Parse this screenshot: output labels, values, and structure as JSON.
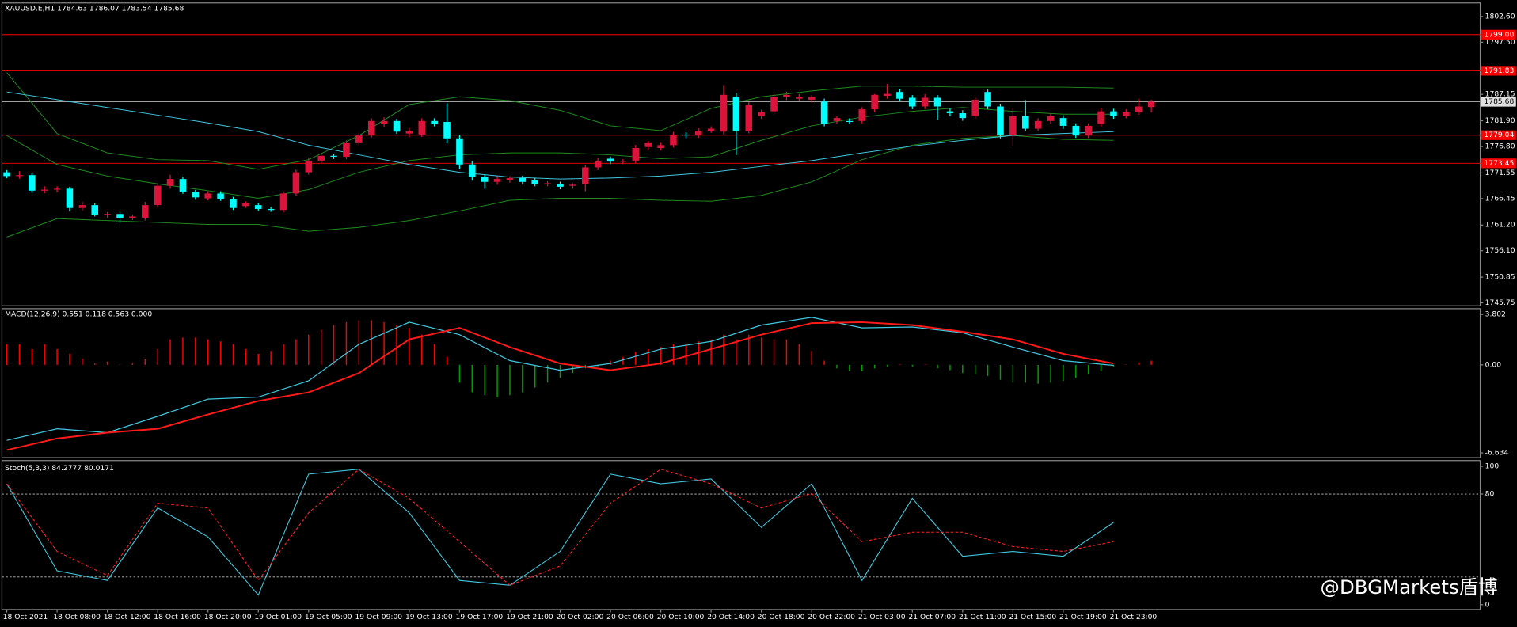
{
  "watermark": "@DBGMarkets盾博",
  "chart_data": [
    {
      "type": "candlestick",
      "title": "XAUUSD.E,H1  1784.63 1786.07 1783.54 1785.68",
      "categories": [
        "18 Oct 2021",
        null,
        null,
        null,
        "18 Oct 08:00",
        null,
        null,
        null,
        "18 Oct 12:00",
        null,
        null,
        null,
        "18 Oct 16:00",
        null,
        null,
        null,
        "18 Oct 20:00",
        null,
        null,
        null,
        "19 Oct 01:00",
        null,
        null,
        null,
        "19 Oct 05:00",
        null,
        null,
        null,
        "19 Oct 09:00",
        null,
        null,
        null,
        "19 Oct 13:00",
        null,
        null,
        null,
        "19 Oct 17:00",
        null,
        null,
        null,
        "19 Oct 21:00",
        null,
        null,
        null,
        "20 Oct 02:00",
        null,
        null,
        null,
        "20 Oct 06:00",
        null,
        null,
        null,
        "20 Oct 10:00",
        null,
        null,
        null,
        "20 Oct 14:00",
        null,
        null,
        null,
        "20 Oct 18:00",
        null,
        null,
        null,
        "20 Oct 22:00",
        null,
        null,
        null,
        "21 Oct 03:00",
        null,
        null,
        null,
        "21 Oct 07:00",
        null,
        null,
        null,
        "21 Oct 11:00",
        null,
        null,
        null,
        "21 Oct 15:00",
        null,
        null,
        null,
        "21 Oct 19:00",
        null,
        null,
        null,
        "21 Oct 23:00",
        null,
        null,
        null
      ],
      "open": [
        1771.68,
        1770.92,
        1771.11,
        1768.03,
        1768.23,
        1768.42,
        1764.58,
        1765.15,
        1763.23,
        1763.4,
        1762.66,
        1762.66,
        1765.15,
        1768.99,
        1770.34,
        1767.84,
        1766.5,
        1767.46,
        1766.31,
        1764.96,
        1765.15,
        1764.39,
        1764.19,
        1767.46,
        1771.68,
        1773.99,
        1774.95,
        1774.76,
        1777.45,
        1778.98,
        1781.29,
        1781.86,
        1779.37,
        1779.17,
        1781.86,
        1781.67,
        1778.41,
        1773.22,
        1770.72,
        1769.76,
        1770.15,
        1770.53,
        1770.15,
        1769.38,
        1769.38,
        1768.99,
        1769.38,
        1772.64,
        1774.37,
        1773.8,
        1773.99,
        1776.68,
        1776.49,
        1777.06,
        1779.17,
        1778.98,
        1779.94,
        1779.75,
        1786.66,
        1779.94,
        1782.82,
        1783.78,
        1786.66,
        1786.28,
        1786.09,
        1785.7,
        1781.86,
        1781.86,
        1781.86,
        1784.17,
        1786.86,
        1787.62,
        1786.47,
        1784.74,
        1786.47,
        1783.78,
        1783.4,
        1782.82,
        1787.62,
        1784.74,
        1778.98,
        1782.82,
        1780.33,
        1781.86,
        1782.44,
        1780.9,
        1778.98,
        1781.29,
        1783.78,
        1782.82,
        1783.59,
        1784.63
      ],
      "high": [
        1772.1,
        1771.9,
        1771.5,
        1768.9,
        1768.9,
        1768.8,
        1765.8,
        1765.5,
        1763.8,
        1763.9,
        1763.3,
        1765.8,
        1769.5,
        1771.2,
        1770.8,
        1768.2,
        1767.9,
        1767.9,
        1766.8,
        1765.9,
        1765.6,
        1764.8,
        1767.9,
        1772.2,
        1774.6,
        1775.4,
        1775.3,
        1778,
        1779.5,
        1782.4,
        1782.6,
        1782.3,
        1780.5,
        1782.4,
        1782.4,
        1785.4,
        1779,
        1773.9,
        1771.3,
        1770.9,
        1770.9,
        1771,
        1770.6,
        1769.9,
        1769.8,
        1769.5,
        1773.2,
        1774.5,
        1774.8,
        1774.3,
        1777.1,
        1777.9,
        1777.5,
        1779.7,
        1779.6,
        1780.4,
        1780.8,
        1789,
        1787.4,
        1785.6,
        1784.1,
        1787.2,
        1787.7,
        1787.2,
        1787,
        1786.3,
        1782.9,
        1782.4,
        1784.6,
        1787.2,
        1789.2,
        1788.2,
        1787,
        1787.2,
        1787,
        1784.4,
        1784,
        1786.6,
        1788.1,
        1785.3,
        1784.4,
        1786,
        1782.4,
        1783.4,
        1783,
        1781.4,
        1781.4,
        1784.4,
        1784.3,
        1784.2,
        1786.3,
        1786.07
      ],
      "low": [
        1770.5,
        1770.4,
        1767.6,
        1767.5,
        1767.7,
        1763.9,
        1764.1,
        1762.9,
        1762.6,
        1761.6,
        1762.2,
        1762.1,
        1764.6,
        1768.4,
        1767.4,
        1766.2,
        1766.1,
        1766,
        1764.2,
        1764.6,
        1764,
        1763.8,
        1763.7,
        1767,
        1771.2,
        1773.5,
        1774.3,
        1774.3,
        1777,
        1778.6,
        1780.7,
        1779.3,
        1778.6,
        1778.7,
        1780.8,
        1777.4,
        1772.4,
        1770,
        1768.4,
        1769.2,
        1769.6,
        1769.3,
        1768.9,
        1768.9,
        1768.3,
        1768.4,
        1767.9,
        1772.1,
        1773.3,
        1773.3,
        1773.5,
        1776.2,
        1776,
        1776.6,
        1778.5,
        1778.5,
        1779.5,
        1779.2,
        1775.1,
        1779.4,
        1782.3,
        1783.2,
        1786,
        1785.8,
        1785.5,
        1780.8,
        1781.3,
        1781.2,
        1781.4,
        1783.7,
        1786.3,
        1785.8,
        1784.2,
        1784.2,
        1782.1,
        1782.8,
        1781.9,
        1782.3,
        1784.2,
        1778.4,
        1776.8,
        1779.8,
        1779.9,
        1781.3,
        1780.3,
        1778.5,
        1778.5,
        1780.8,
        1782.3,
        1782.4,
        1783.1,
        1783.54
      ],
      "close": [
        1770.92,
        1771.11,
        1768.03,
        1768.23,
        1768.42,
        1764.58,
        1765.15,
        1763.23,
        1763.4,
        1762.66,
        1762.9,
        1765.15,
        1768.99,
        1770.34,
        1767.84,
        1766.69,
        1767.46,
        1766.31,
        1764.58,
        1765.54,
        1764.39,
        1764.19,
        1767.46,
        1771.68,
        1773.99,
        1774.95,
        1774.76,
        1777.45,
        1778.98,
        1781.86,
        1781.86,
        1779.75,
        1779.94,
        1781.86,
        1781.29,
        1778.41,
        1773.22,
        1770.72,
        1769.76,
        1770.34,
        1770.53,
        1769.76,
        1769.38,
        1769.5,
        1768.8,
        1769.2,
        1772.64,
        1773.99,
        1773.8,
        1773.95,
        1776.49,
        1777.45,
        1777.06,
        1779.17,
        1778.98,
        1779.94,
        1780.33,
        1787.05,
        1779.94,
        1785.13,
        1783.59,
        1786.66,
        1787.05,
        1786.66,
        1786.66,
        1781.29,
        1782.44,
        1781.67,
        1784.17,
        1787.05,
        1787.24,
        1786.28,
        1784.74,
        1786.47,
        1784.74,
        1783.4,
        1782.44,
        1786.09,
        1784.74,
        1778.98,
        1782.82,
        1780.33,
        1781.86,
        1782.82,
        1780.9,
        1778.98,
        1780.9,
        1783.78,
        1782.82,
        1783.59,
        1784.74,
        1785.68
      ],
      "up_color": "#dc143c",
      "down_color": "#00ffff",
      "overlays": [
        {
          "color": "#1e8c1e",
          "values": [
            1791.47,
            1779.37,
            1775.52,
            1774.18,
            1773.99,
            1772.26,
            1774.18,
            1778.98,
            1785.13,
            1786.66,
            1785.9,
            1783.98,
            1780.9,
            1779.94,
            1784.36,
            1786.66,
            1787.82,
            1788.78,
            1788.78,
            1788.58,
            1788.58,
            1788.58,
            1788.39
          ]
        },
        {
          "color": "#1e8c1e",
          "values": [
            1778.98,
            1773.22,
            1770.92,
            1769.38,
            1768.03,
            1766.5,
            1768.23,
            1771.68,
            1773.99,
            1775.14,
            1775.52,
            1775.52,
            1775.14,
            1774.37,
            1774.76,
            1778.02,
            1780.9,
            1782.63,
            1783.78,
            1784.55,
            1783.78,
            1783.21,
            1783.21
          ]
        },
        {
          "color": "#1e8c1e",
          "values": [
            1758.82,
            1762.47,
            1762.08,
            1761.7,
            1761.31,
            1761.31,
            1759.97,
            1760.73,
            1762.08,
            1764,
            1766.11,
            1766.5,
            1766.5,
            1766.11,
            1765.92,
            1767.07,
            1769.76,
            1774.18,
            1777.06,
            1778.41,
            1778.98,
            1778.21,
            1778.02
          ]
        },
        {
          "color": "#40c8e0",
          "values": [
            1787.62,
            1786.09,
            1784.55,
            1783.02,
            1781.48,
            1779.75,
            1777.06,
            1775.14,
            1773.22,
            1771.68,
            1770.72,
            1770.34,
            1770.53,
            1770.92,
            1771.68,
            1772.84,
            1773.99,
            1775.52,
            1776.87,
            1778.02,
            1778.98,
            1779.37,
            1779.75
          ]
        }
      ],
      "hlines": [
        {
          "value": 1799.0,
          "label": "1799.00"
        },
        {
          "value": 1791.83,
          "label": "1791.83"
        },
        {
          "value": 1779.04,
          "label": "1779.04"
        },
        {
          "value": 1773.45,
          "label": "1773.45"
        }
      ],
      "hline_color": "#ff0000",
      "last_price": 1785.68,
      "last_price_color": "#a0a0a0",
      "ylim": [
        1745.17,
        1805.1
      ],
      "yticks": [
        {
          "value": 1802.6,
          "label": "1802.60"
        },
        {
          "value": 1797.5,
          "label": "1797.50"
        },
        {
          "value": 1787.15,
          "label": "1787.15"
        },
        {
          "value": 1781.9,
          "label": "1781.90"
        },
        {
          "value": 1776.8,
          "label": "1776.80"
        },
        {
          "value": 1771.55,
          "label": "1771.55"
        },
        {
          "value": 1766.45,
          "label": "1766.45"
        },
        {
          "value": 1761.2,
          "label": "1761.20"
        },
        {
          "value": 1756.1,
          "label": "1756.10"
        },
        {
          "value": 1750.85,
          "label": "1750.85"
        },
        {
          "value": 1745.75,
          "label": "1745.75"
        }
      ]
    },
    {
      "type": "macd",
      "title": "MACD(12,26,9) 0.551 0.118 0.563 0.000",
      "values": [
        1.56,
        1.56,
        1.19,
        1.56,
        1.19,
        0.83,
        0.47,
        0.11,
        0.25,
        0.03,
        0.18,
        0.47,
        1.19,
        1.92,
        2.06,
        2.06,
        1.92,
        1.77,
        1.56,
        1.19,
        0.83,
        1.05,
        1.56,
        1.92,
        2.28,
        2.64,
        3.0,
        3.22,
        3.37,
        3.37,
        3.22,
        3.0,
        2.79,
        2.28,
        1.56,
        0.61,
        -1.34,
        -2.07,
        -2.29,
        -2.43,
        -2.29,
        -2.07,
        -1.71,
        -1.34,
        -0.98,
        -0.62,
        -0.26,
        -0.11,
        0.32,
        0.61,
        0.98,
        1.19,
        1.34,
        1.56,
        1.56,
        1.77,
        1.92,
        2.28,
        1.92,
        2.28,
        2.06,
        1.92,
        1.92,
        1.56,
        1.05,
        0.32,
        -0.26,
        -0.47,
        -0.47,
        -0.26,
        -0.11,
        0.03,
        -0.11,
        0.03,
        -0.26,
        -0.4,
        -0.62,
        -0.69,
        -0.84,
        -1.13,
        -1.34,
        -1.34,
        -1.42,
        -1.34,
        -1.2,
        -0.98,
        -0.69,
        -0.47,
        -0.11,
        0.03,
        0.18,
        0.32
      ],
      "up_color": "#ff0000",
      "down_color": "#00a000",
      "series": [
        {
          "color": "#40c8e0",
          "values": [
            -5.69,
            -4.82,
            -5.11,
            -3.88,
            -2.58,
            -2.43,
            -1.2,
            1.55,
            3.22,
            2.28,
            0.32,
            -0.4,
            0.1,
            1.19,
            1.77,
            3.0,
            3.58,
            2.79,
            2.86,
            2.42,
            1.34,
            0.32,
            -0.04
          ]
        },
        {
          "color": "#ff1a1a",
          "values": [
            -6.42,
            -5.55,
            -5.11,
            -4.82,
            -3.74,
            -2.72,
            -2.07,
            -0.62,
            1.92,
            2.79,
            1.34,
            0.1,
            -0.4,
            0.1,
            1.19,
            2.28,
            3.15,
            3.22,
            3.0,
            2.5,
            1.92,
            0.83,
            0.1
          ]
        }
      ],
      "ylim": [
        -6.996,
        4.164
      ],
      "yticks": [
        3.802,
        {
          "value": 0,
          "label": "0.00"
        },
        -6.634
      ]
    },
    {
      "type": "line",
      "title": "Stoch(5,3,3) 84.2777 80.0171",
      "series": [
        {
          "color": "#40c8e0",
          "style": "solid",
          "values": [
            87.4,
            24.5,
            17.5,
            69.9,
            49.0,
            7.0,
            94.4,
            97.9,
            66.4,
            17.5,
            14.0,
            38.5,
            94.4,
            87.4,
            90.9,
            55.9,
            87.4,
            17.5,
            76.9,
            35.0,
            38.5,
            35.0,
            59.4
          ]
        },
        {
          "color": "#ff2020",
          "style": "dashed",
          "values": [
            87.4,
            38.5,
            21.0,
            73.4,
            69.9,
            17.5,
            66.4,
            97.9,
            76.9,
            45.5,
            14.0,
            28.0,
            73.4,
            97.9,
            87.4,
            69.9,
            80.4,
            45.5,
            52.4,
            52.4,
            42.0,
            38.5,
            45.5
          ]
        }
      ],
      "levels": [
        80,
        20
      ],
      "level_color": "#c0c0c0",
      "ylim": [
        -3.5,
        103.5
      ],
      "yticks": [
        100,
        80,
        0
      ]
    }
  ]
}
